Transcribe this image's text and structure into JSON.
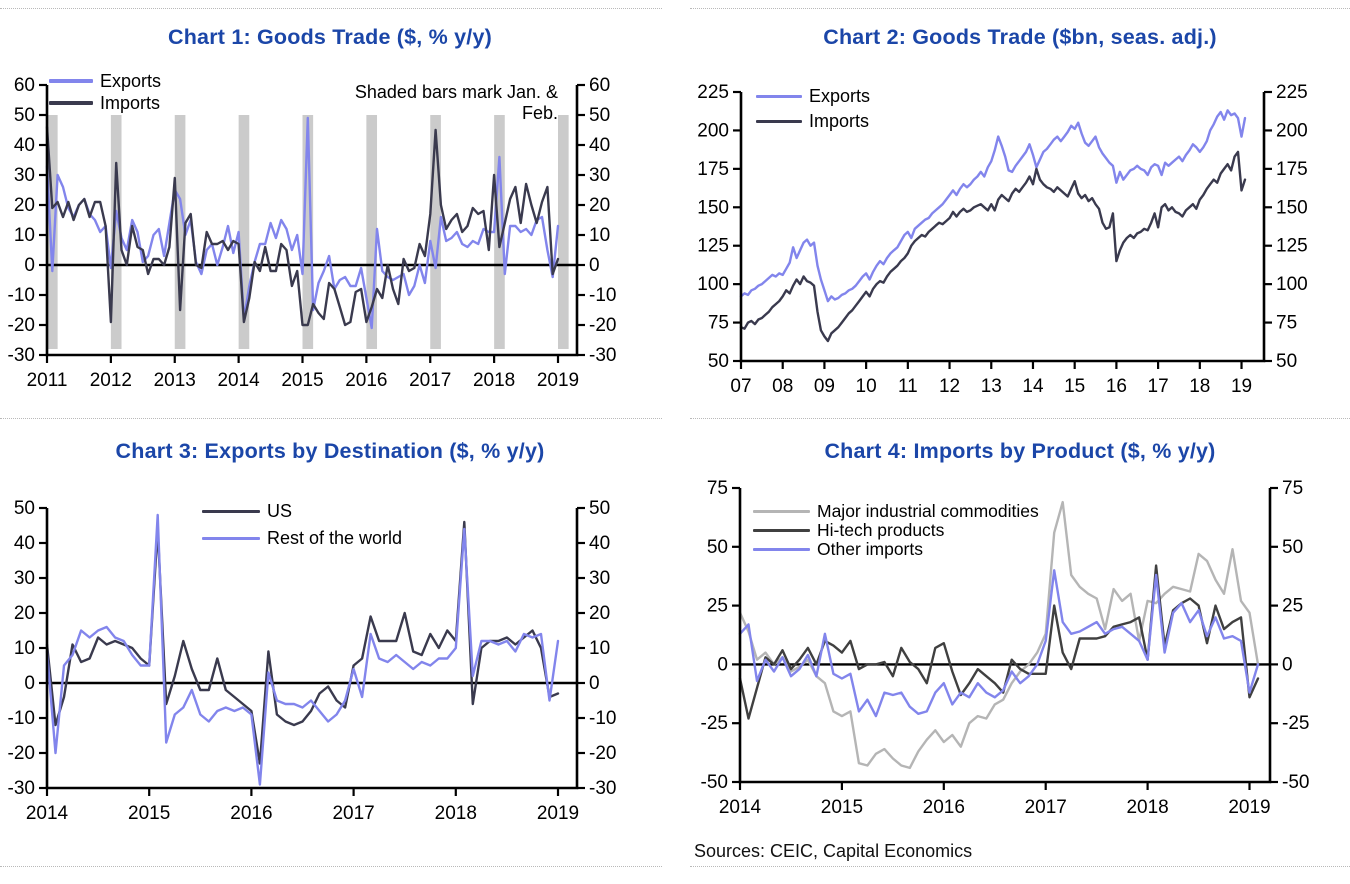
{
  "page": {
    "sources_label": "Sources: CEIC, Capital Economics"
  },
  "chart_data": [
    {
      "type": "line",
      "title": "Chart 1: Goods Trade ($, % y/y)",
      "annotation": "Shaded bars mark Jan. & Feb.",
      "ylabel": "% y/y",
      "ylim": [
        -30,
        60
      ],
      "yticks": [
        60,
        50,
        40,
        30,
        20,
        10,
        0,
        -10,
        -20,
        -30
      ],
      "xtick_labels": [
        "2011",
        "2012",
        "2013",
        "2014",
        "2015",
        "2016",
        "2017",
        "2018",
        "2019"
      ],
      "xtick_months": [
        0,
        12,
        24,
        36,
        48,
        60,
        72,
        84,
        96
      ],
      "zero_line": true,
      "grid": false,
      "legend_position": "top-left-inside",
      "shaded_bars": {
        "months": [
          0,
          12,
          24,
          36,
          48,
          60,
          72,
          84,
          96
        ],
        "span_months": 2,
        "from": 50,
        "to": -28,
        "color": "#cbcbcb"
      },
      "series": [
        {
          "name": "Exports",
          "color": "#8285ec",
          "values": [
            33,
            -2,
            30,
            26,
            19,
            16,
            20,
            22,
            17,
            15,
            11,
            13,
            -1,
            18,
            9,
            5,
            15,
            11,
            1,
            3,
            10,
            12,
            3,
            14,
            25,
            22,
            10,
            15,
            1,
            -3,
            5,
            7,
            0,
            6,
            13,
            4,
            11,
            -18,
            -7,
            1,
            7,
            7,
            14,
            9,
            15,
            12,
            5,
            10,
            -3,
            49,
            -15,
            -6,
            -2,
            3,
            -8,
            -5,
            -4,
            -7,
            -7,
            -1,
            -11,
            -21,
            12,
            -2,
            -4,
            -5,
            -4,
            -3,
            -10,
            -7,
            0,
            -6,
            8,
            -1,
            16,
            8,
            9,
            11,
            7,
            6,
            8,
            7,
            12,
            11,
            11,
            36,
            -3,
            13,
            13,
            11,
            12,
            10,
            15,
            16,
            5,
            -4,
            13
          ]
        },
        {
          "name": "Imports",
          "color": "#3a3a4e",
          "values": [
            46,
            19,
            21,
            16,
            21,
            15,
            20,
            22,
            16,
            21,
            21,
            13,
            -19,
            34,
            5,
            0,
            13,
            6,
            5,
            -3,
            2,
            2,
            0,
            6,
            29,
            -15,
            14,
            17,
            0,
            -1,
            11,
            7,
            7,
            8,
            5,
            8,
            7,
            -19,
            -11,
            1,
            -2,
            6,
            -2,
            -2,
            7,
            5,
            -7,
            -2,
            -20,
            -20,
            -13,
            -16,
            -18,
            -6,
            -8,
            -14,
            -20,
            -19,
            -9,
            -8,
            -19,
            -14,
            -8,
            -11,
            0,
            -8,
            -13,
            2,
            -2,
            -1,
            7,
            3,
            17,
            45,
            20,
            12,
            15,
            17,
            11,
            13,
            19,
            17,
            18,
            5,
            30,
            6,
            14,
            22,
            26,
            14,
            27,
            20,
            14,
            21,
            26,
            -3,
            2
          ]
        }
      ]
    },
    {
      "type": "line",
      "title": "Chart 2: Goods Trade ($bn, seas. adj.)",
      "ylabel": "$bn",
      "ylim": [
        50,
        225
      ],
      "yticks": [
        225,
        200,
        175,
        150,
        125,
        100,
        75,
        50
      ],
      "xtick_labels": [
        "07",
        "08",
        "09",
        "10",
        "11",
        "12",
        "13",
        "14",
        "15",
        "16",
        "17",
        "18",
        "19"
      ],
      "xtick_months": [
        0,
        12,
        24,
        36,
        48,
        60,
        72,
        84,
        96,
        108,
        120,
        132,
        144
      ],
      "zero_line": false,
      "grid": false,
      "legend_position": "top-left-inside",
      "series": [
        {
          "name": "Exports",
          "color": "#8285ec",
          "values": [
            92,
            94,
            93,
            96,
            97,
            99,
            100,
            102,
            104,
            106,
            105,
            107,
            106,
            110,
            114,
            124,
            117,
            122,
            127,
            129,
            125,
            127,
            112,
            103,
            96,
            89,
            92,
            90,
            91,
            93,
            94,
            96,
            97,
            99,
            102,
            105,
            107,
            103,
            108,
            112,
            115,
            113,
            117,
            120,
            122,
            124,
            128,
            132,
            134,
            130,
            136,
            138,
            140,
            142,
            143,
            146,
            148,
            150,
            152,
            155,
            158,
            161,
            158,
            162,
            165,
            163,
            165,
            168,
            170,
            173,
            170,
            176,
            180,
            187,
            196,
            190,
            183,
            174,
            173,
            177,
            180,
            183,
            186,
            191,
            184,
            176,
            181,
            186,
            188,
            191,
            194,
            196,
            193,
            196,
            199,
            203,
            201,
            205,
            198,
            192,
            190,
            193,
            196,
            189,
            185,
            182,
            179,
            177,
            166,
            173,
            168,
            171,
            174,
            175,
            177,
            175,
            174,
            171,
            176,
            178,
            177,
            171,
            179,
            177,
            179,
            181,
            183,
            180,
            184,
            187,
            191,
            189,
            186,
            189,
            193,
            200,
            204,
            209,
            212,
            207,
            213,
            210,
            211,
            208,
            196,
            208
          ]
        },
        {
          "name": "Imports",
          "color": "#3a3a4e",
          "values": [
            72,
            71,
            75,
            76,
            74,
            77,
            78,
            80,
            82,
            85,
            87,
            89,
            92,
            96,
            94,
            99,
            103,
            100,
            105,
            102,
            101,
            99,
            82,
            70,
            66,
            63,
            68,
            70,
            72,
            75,
            78,
            81,
            83,
            86,
            89,
            92,
            95,
            92,
            97,
            100,
            102,
            101,
            105,
            108,
            110,
            112,
            115,
            117,
            120,
            125,
            128,
            130,
            132,
            131,
            134,
            136,
            138,
            140,
            139,
            141,
            143,
            147,
            144,
            147,
            149,
            147,
            148,
            150,
            151,
            152,
            150,
            148,
            152,
            148,
            155,
            158,
            156,
            154,
            159,
            162,
            160,
            163,
            166,
            170,
            165,
            175,
            168,
            165,
            163,
            162,
            160,
            163,
            161,
            159,
            157,
            162,
            167,
            159,
            156,
            158,
            154,
            156,
            152,
            149,
            140,
            136,
            137,
            146,
            115,
            122,
            127,
            130,
            132,
            130,
            133,
            134,
            136,
            135,
            140,
            146,
            137,
            150,
            152,
            148,
            150,
            147,
            146,
            144,
            148,
            150,
            152,
            149,
            155,
            158,
            162,
            165,
            168,
            166,
            172,
            175,
            178,
            174,
            183,
            186,
            161,
            168
          ]
        }
      ]
    },
    {
      "type": "line",
      "title": "Chart 3: Exports by Destination ($, % y/y)",
      "ylabel": "% y/y",
      "ylim": [
        -30,
        50
      ],
      "yticks": [
        50,
        40,
        30,
        20,
        10,
        0,
        -10,
        -20,
        -30
      ],
      "xtick_labels": [
        "2014",
        "2015",
        "2016",
        "2017",
        "2018",
        "2019"
      ],
      "xtick_months": [
        0,
        12,
        24,
        36,
        48,
        60
      ],
      "zero_line": true,
      "grid": false,
      "legend_position": "top-center-inside",
      "series": [
        {
          "name": "US",
          "color": "#3a3a4e",
          "values": [
            11,
            -12,
            -4,
            11,
            6,
            7,
            13,
            11,
            12,
            11,
            10,
            7,
            5,
            44,
            -6,
            2,
            12,
            4,
            -2,
            -2,
            7,
            -2,
            -4,
            -6,
            -8,
            -23,
            9,
            -9,
            -11,
            -12,
            -11,
            -8,
            -3,
            -1,
            -5,
            -7,
            5,
            7,
            19,
            12,
            12,
            12,
            20,
            9,
            8,
            14,
            10,
            15,
            12,
            46,
            -6,
            10,
            12,
            12,
            13,
            11,
            13,
            15,
            10,
            -4,
            -3
          ]
        },
        {
          "name": "Rest of the world",
          "color": "#8285ec",
          "values": [
            9,
            -20,
            5,
            8,
            15,
            13,
            15,
            16,
            13,
            12,
            8,
            5,
            5,
            48,
            -17,
            -9,
            -7,
            -2,
            -9,
            -11,
            -8,
            -7,
            -8,
            -7,
            -9,
            -29,
            3,
            -5,
            -6,
            -6,
            -7,
            -5,
            -8,
            -11,
            -9,
            -5,
            4,
            -4,
            14,
            7,
            6,
            8,
            6,
            4,
            6,
            5,
            7,
            7,
            10,
            44,
            2,
            12,
            12,
            11,
            12,
            9,
            14,
            13,
            14,
            -5,
            12
          ]
        }
      ]
    },
    {
      "type": "line",
      "title": "Chart 4: Imports by Product ($, % y/y)",
      "ylabel": "% y/y",
      "ylim": [
        -50,
        75
      ],
      "yticks": [
        75,
        50,
        25,
        0,
        -25,
        -50
      ],
      "xtick_labels": [
        "2014",
        "2015",
        "2016",
        "2017",
        "2018",
        "2019"
      ],
      "xtick_months": [
        0,
        12,
        24,
        36,
        48,
        60
      ],
      "zero_line": true,
      "grid": false,
      "legend_position": "top-left-inside",
      "series": [
        {
          "name": "Major industrial commodities",
          "color": "#b5b5b5",
          "values": [
            22,
            14,
            2,
            5,
            0,
            3,
            -3,
            -1,
            2,
            -5,
            -8,
            -20,
            -22,
            -20,
            -42,
            -43,
            -38,
            -36,
            -40,
            -43,
            -44,
            -37,
            -32,
            -28,
            -33,
            -30,
            -35,
            -25,
            -22,
            -23,
            -17,
            -15,
            -8,
            -3,
            0,
            5,
            13,
            56,
            69,
            38,
            33,
            30,
            28,
            15,
            32,
            27,
            30,
            10,
            27,
            26,
            30,
            33,
            32,
            31,
            47,
            44,
            36,
            30,
            49,
            27,
            22,
            0
          ]
        },
        {
          "name": "Hi-tech products",
          "color": "#404040",
          "values": [
            -6,
            -23,
            -10,
            3,
            0,
            6,
            -2,
            2,
            7,
            0,
            10,
            8,
            5,
            10,
            -2,
            0,
            0,
            1,
            -5,
            7,
            1,
            -2,
            -8,
            7,
            9,
            -3,
            -13,
            -8,
            -2,
            -5,
            -8,
            -12,
            2,
            -2,
            -4,
            -4,
            -4,
            25,
            5,
            -2,
            11,
            11,
            11,
            12,
            16,
            17,
            18,
            20,
            2,
            42,
            8,
            23,
            26,
            28,
            25,
            9,
            25,
            15,
            18,
            20,
            -14,
            -6
          ]
        },
        {
          "name": "Other imports",
          "color": "#8285ec",
          "values": [
            13,
            17,
            -7,
            2,
            -3,
            3,
            -5,
            -2,
            4,
            -5,
            13,
            -4,
            -6,
            -4,
            -20,
            -15,
            -22,
            -12,
            -13,
            -12,
            -18,
            -21,
            -20,
            -12,
            -8,
            -17,
            -12,
            -14,
            -8,
            -12,
            -14,
            -11,
            -3,
            -8,
            -5,
            0,
            10,
            40,
            18,
            13,
            14,
            16,
            18,
            13,
            15,
            16,
            13,
            10,
            2,
            38,
            5,
            22,
            26,
            18,
            23,
            12,
            20,
            11,
            12,
            10,
            -12,
            0
          ]
        }
      ]
    }
  ]
}
